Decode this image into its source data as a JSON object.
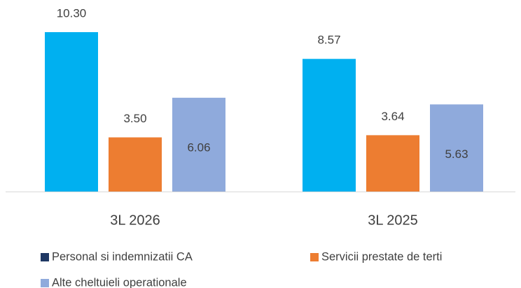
{
  "chart_data": {
    "type": "bar",
    "categories": [
      "3L 2026",
      "3L 2025"
    ],
    "series": [
      {
        "name": "Personal si indemnizatii CA",
        "color": "#00b0f0",
        "legend_color": "#1f3864",
        "values": [
          10.3,
          8.57
        ],
        "value_labels": [
          "10.30",
          "8.57"
        ]
      },
      {
        "name": "Servicii prestate de terti",
        "color": "#ed7d31",
        "values": [
          3.5,
          3.64
        ],
        "value_labels": [
          "3.50",
          "3.64"
        ]
      },
      {
        "name": "Alte cheltuieli operationale",
        "color": "#8faadc",
        "values": [
          6.06,
          5.63
        ],
        "value_labels": [
          "6.06",
          "5.63"
        ],
        "label_inside": true
      }
    ]
  }
}
